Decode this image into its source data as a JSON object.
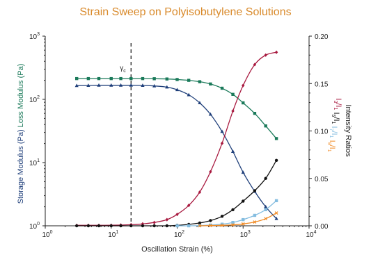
{
  "title": "Strain Sweep on Polyisobutylene Solutions",
  "colors": {
    "title": "#d98a2b",
    "storage": "#1f3f7a",
    "loss": "#1b7a5a",
    "i3": "#a8193f",
    "i5": "#111111",
    "i7": "#84bde0",
    "i9": "#f08a24"
  },
  "chart_data": {
    "type": "line",
    "title": "Strain Sweep on Polyisobutylene Solutions",
    "xlabel": "Oscillation Strain (%)",
    "x_scale": "log",
    "xlim": [
      1,
      10000
    ],
    "x_ticks": [
      1,
      10,
      100,
      1000,
      10000
    ],
    "x_tick_labels": [
      [
        "10",
        "0"
      ],
      [
        "10",
        "1"
      ],
      [
        "10",
        "2"
      ],
      [
        "10",
        "3"
      ],
      [
        "10",
        "4"
      ]
    ],
    "y_left": {
      "scale": "log",
      "lim": [
        1,
        1000
      ],
      "ticks": [
        1,
        10,
        100,
        1000
      ],
      "tick_labels": [
        [
          "10",
          "0"
        ],
        [
          "10",
          "1"
        ],
        [
          "10",
          "2"
        ],
        [
          "10",
          "3"
        ]
      ],
      "label_parts": [
        {
          "text": "Storage Modulus (Pa)",
          "color": "#1f3f7a"
        },
        {
          "text": "  Loss Modulus (Pa)",
          "color": "#1b7a5a"
        }
      ]
    },
    "y_right": {
      "scale": "linear",
      "lim": [
        0,
        0.2
      ],
      "ticks": [
        0,
        0.05,
        0.1,
        0.15,
        0.2
      ],
      "tick_labels": [
        "0.00",
        "0.05",
        "0.10",
        "0.15",
        "0.20"
      ],
      "label": "Intensity Ratios",
      "ratio_labels": [
        {
          "main": "I",
          "sub": "3",
          "sep": "/I",
          "sub2": "1",
          "color": "#a8193f"
        },
        {
          "main": "I",
          "sub": "5",
          "sep": "/I",
          "sub2": "1",
          "color": "#111111"
        },
        {
          "main": "I",
          "sub": "7",
          "sep": "/I",
          "sub2": "1",
          "color": "#84bde0"
        },
        {
          "main": "I",
          "sub": "9",
          "sep": "/I",
          "sub2": "1",
          "color": "#f08a24"
        }
      ]
    },
    "annotation": {
      "text": "γ",
      "sub": "c",
      "x": 20
    },
    "series": [
      {
        "axis": "left",
        "color": "#1b7a5a",
        "marker": "square",
        "x": [
          3,
          4.5,
          6.5,
          10,
          14,
          20,
          30,
          45,
          70,
          100,
          150,
          220,
          320,
          480,
          700,
          1000,
          1500,
          2200,
          3200
        ],
        "y": [
          213,
          213,
          213,
          213,
          213,
          213,
          213,
          212,
          210,
          206,
          200,
          190,
          175,
          150,
          120,
          88,
          60,
          38,
          24
        ]
      },
      {
        "axis": "left",
        "color": "#1f3f7a",
        "marker": "triangle",
        "x": [
          3,
          4.5,
          6.5,
          10,
          14,
          20,
          30,
          45,
          70,
          100,
          150,
          220,
          320,
          480,
          700,
          1000,
          1500,
          2200,
          3200
        ],
        "y": [
          165,
          166,
          167,
          167,
          167,
          167,
          166,
          163,
          156,
          142,
          118,
          88,
          58,
          31,
          15,
          7,
          3.5,
          2,
          1.3
        ]
      },
      {
        "axis": "right",
        "color": "#a8193f",
        "marker": "diamond",
        "x": [
          3,
          4.5,
          6.5,
          10,
          14,
          20,
          30,
          45,
          70,
          100,
          150,
          220,
          320,
          480,
          700,
          1000,
          1500,
          2200,
          3200
        ],
        "y": [
          0.0005,
          0.0005,
          0.0005,
          0.0006,
          0.0008,
          0.0012,
          0.002,
          0.0035,
          0.0065,
          0.012,
          0.0215,
          0.0355,
          0.057,
          0.087,
          0.121,
          0.148,
          0.17,
          0.18,
          0.183
        ]
      },
      {
        "axis": "right",
        "color": "#111111",
        "marker": "circle",
        "x": [
          3,
          4.5,
          6.5,
          10,
          14,
          20,
          30,
          45,
          70,
          100,
          150,
          220,
          320,
          480,
          700,
          1000,
          1500,
          2200,
          3200
        ],
        "y": [
          0,
          0,
          0,
          0,
          0,
          0,
          0,
          0,
          0,
          0.0005,
          0.0015,
          0.003,
          0.0055,
          0.01,
          0.017,
          0.026,
          0.037,
          0.05,
          0.069
        ]
      },
      {
        "axis": "right",
        "color": "#84bde0",
        "marker": "square",
        "x": [
          100,
          150,
          220,
          320,
          480,
          700,
          1000,
          1500,
          2200,
          3200
        ],
        "y": [
          0,
          0,
          0.0003,
          0.0008,
          0.0017,
          0.0035,
          0.0065,
          0.011,
          0.017,
          0.0265
        ]
      },
      {
        "axis": "right",
        "color": "#f08a24",
        "marker": "cross",
        "x": [
          220,
          320,
          480,
          700,
          1000,
          1500,
          2200,
          3200
        ],
        "y": [
          0,
          0.0002,
          0.0005,
          0.001,
          0.002,
          0.004,
          0.0075,
          0.0135
        ]
      }
    ]
  }
}
